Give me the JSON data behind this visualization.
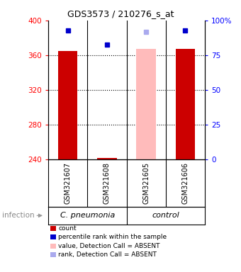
{
  "title": "GDS3573 / 210276_s_at",
  "samples": [
    "GSM321607",
    "GSM321608",
    "GSM321605",
    "GSM321606"
  ],
  "ylim_left": [
    240,
    400
  ],
  "ylim_right": [
    0,
    100
  ],
  "yticks_left": [
    240,
    280,
    320,
    360,
    400
  ],
  "yticks_right": [
    0,
    25,
    50,
    75,
    100
  ],
  "ytick_right_labels": [
    "0",
    "25",
    "50",
    "75",
    "100%"
  ],
  "bar_values": [
    365,
    241,
    367,
    367
  ],
  "bar_colors": [
    "#cc0000",
    "#cc0000",
    "#ffbbbb",
    "#cc0000"
  ],
  "dot_values": [
    388,
    372,
    387,
    388
  ],
  "dot_colors": [
    "#0000cc",
    "#0000cc",
    "#aaaaee",
    "#0000cc"
  ],
  "dot_sizes": [
    5,
    5,
    5,
    5
  ],
  "gridlines": [
    280,
    320,
    360
  ],
  "sample_label_color": "#cccccc",
  "group_label_color": "#88ee88",
  "group_boundaries": [
    2
  ],
  "group_labels": [
    "C. pneumonia",
    "control"
  ],
  "legend_items": [
    {
      "label": "count",
      "color": "#cc0000"
    },
    {
      "label": "percentile rank within the sample",
      "color": "#0000cc"
    },
    {
      "label": "value, Detection Call = ABSENT",
      "color": "#ffbbbb"
    },
    {
      "label": "rank, Detection Call = ABSENT",
      "color": "#aaaaee"
    }
  ],
  "infection_label": "infection",
  "background_color": "#ffffff",
  "n_samples": 4,
  "title_fontsize": 9,
  "axis_fontsize": 7.5,
  "sample_fontsize": 7,
  "legend_fontsize": 6.5
}
